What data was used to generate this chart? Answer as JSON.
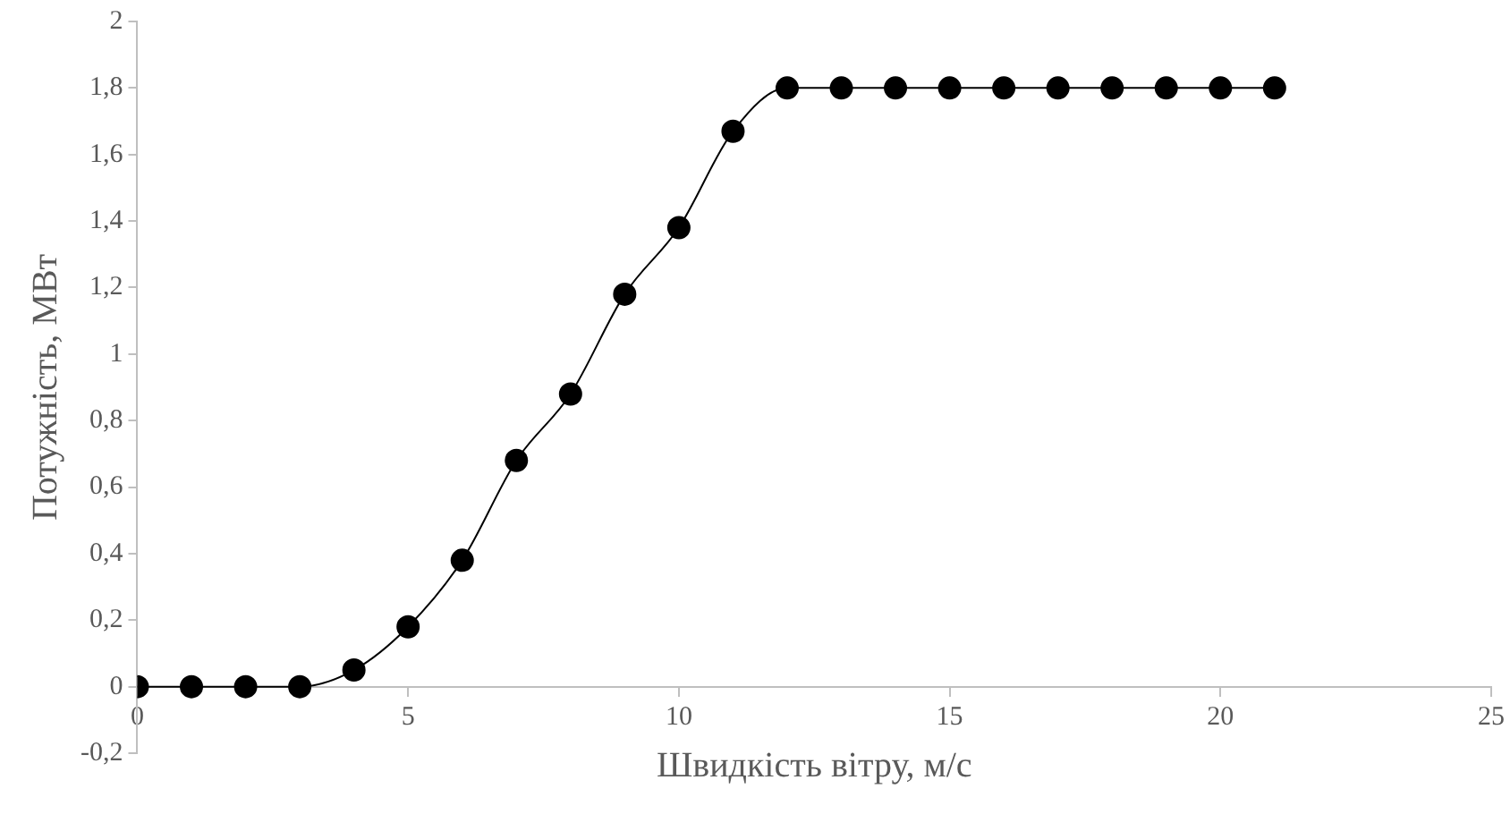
{
  "chart_data": {
    "type": "line",
    "xlabel": "Швидкість вітру, м/с",
    "ylabel": "Потужність, МВт",
    "x": [
      0,
      1,
      2,
      3,
      4,
      5,
      6,
      7,
      8,
      9,
      10,
      11,
      12,
      13,
      14,
      15,
      16,
      17,
      18,
      19,
      20,
      21
    ],
    "series": [
      {
        "color": "#000000",
        "values": [
          0,
          0,
          0,
          0,
          0.05,
          0.18,
          0.38,
          0.68,
          0.88,
          1.18,
          1.38,
          1.67,
          1.8,
          1.8,
          1.8,
          1.8,
          1.8,
          1.8,
          1.8,
          1.8,
          1.8,
          1.8
        ]
      }
    ],
    "xlim": [
      0,
      25
    ],
    "xticks": [
      0,
      5,
      10,
      15,
      20,
      25
    ],
    "ylim": [
      -0.2,
      2
    ],
    "yticks": [
      {
        "value": -0.2,
        "label": "-0,2"
      },
      0,
      {
        "value": 0.2,
        "label": "0,2"
      },
      {
        "value": 0.4,
        "label": "0,4"
      },
      {
        "value": 0.6,
        "label": "0,6"
      },
      {
        "value": 0.8,
        "label": "0,8"
      },
      1,
      {
        "value": 1.2,
        "label": "1,2"
      },
      {
        "value": 1.4,
        "label": "1,4"
      },
      {
        "value": 1.6,
        "label": "1,6"
      },
      {
        "value": 1.8,
        "label": "1,8"
      },
      2
    ],
    "grid": false,
    "legend": false,
    "marker": "circle",
    "line_style": "solid"
  }
}
